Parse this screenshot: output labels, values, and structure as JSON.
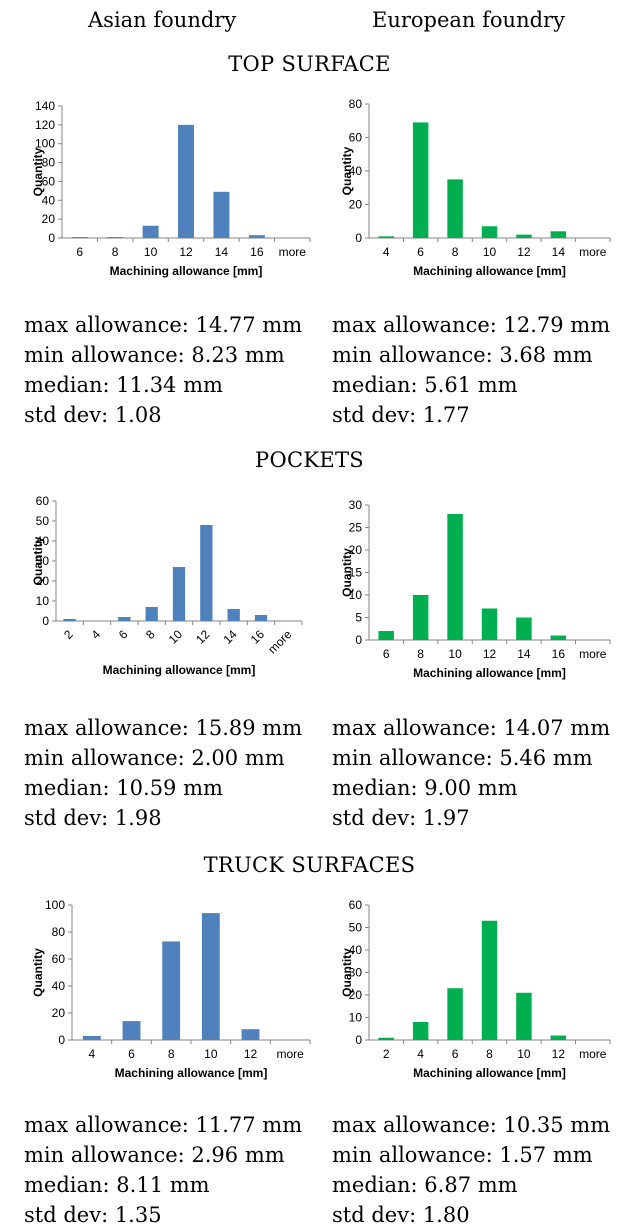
{
  "headers": {
    "left": "Asian foundry",
    "right": "European foundry"
  },
  "colors": {
    "asian": "#4F81BD",
    "european": "#00B050"
  },
  "sections": [
    {
      "title": "TOP SURFACE",
      "charts": [
        {
          "type": "bar",
          "color": "#4F81BD",
          "categories": [
            "6",
            "8",
            "10",
            "12",
            "14",
            "16",
            "more"
          ],
          "values": [
            1,
            1,
            13,
            120,
            49,
            3,
            0
          ],
          "ylim": [
            0,
            140
          ],
          "yticks": [
            0,
            20,
            40,
            60,
            80,
            100,
            120,
            140
          ],
          "xlabel": "Machining allowance [mm]",
          "ylabel": "Quantity",
          "rotate_ticks": false,
          "stats": {
            "max": "max allowance: 14.77 mm",
            "min": "min allowance: 8.23 mm",
            "median": "median: 11.34 mm",
            "std": "std dev: 1.08"
          }
        },
        {
          "type": "bar",
          "color": "#00B050",
          "categories": [
            "4",
            "6",
            "8",
            "10",
            "12",
            "14",
            "more"
          ],
          "values": [
            1,
            69,
            35,
            7,
            2,
            4,
            0
          ],
          "ylim": [
            0,
            80
          ],
          "yticks": [
            0,
            20,
            40,
            60,
            80
          ],
          "xlabel": "Machining allowance [mm]",
          "ylabel": "Quantity",
          "rotate_ticks": false,
          "stats": {
            "max": "max allowance: 12.79 mm",
            "min": "min allowance: 3.68 mm",
            "median": "median: 5.61 mm",
            "std": "std dev: 1.77"
          }
        }
      ]
    },
    {
      "title": "POCKETS",
      "charts": [
        {
          "type": "bar",
          "color": "#4F81BD",
          "categories": [
            "2",
            "4",
            "6",
            "8",
            "10",
            "12",
            "14",
            "16",
            "more"
          ],
          "values": [
            1,
            0,
            2,
            7,
            27,
            48,
            6,
            3,
            0
          ],
          "ylim": [
            0,
            60
          ],
          "yticks": [
            0,
            10,
            20,
            30,
            40,
            50,
            60
          ],
          "xlabel": "Machining allowance [mm]",
          "ylabel": "Quantity",
          "rotate_ticks": true,
          "stats": {
            "max": "max allowance: 15.89 mm",
            "min": "min allowance: 2.00 mm",
            "median": "median: 10.59 mm",
            "std": "std dev: 1.98"
          }
        },
        {
          "type": "bar",
          "color": "#00B050",
          "categories": [
            "6",
            "8",
            "10",
            "12",
            "14",
            "16",
            "more"
          ],
          "values": [
            2,
            10,
            28,
            7,
            5,
            1,
            0
          ],
          "ylim": [
            0,
            30
          ],
          "yticks": [
            0,
            5,
            10,
            15,
            20,
            25,
            30
          ],
          "xlabel": "Machining allowance [mm]",
          "ylabel": "Quantity",
          "rotate_ticks": false,
          "stats": {
            "max": "max allowance: 14.07 mm",
            "min": "min allowance: 5.46 mm",
            "median": "median: 9.00 mm",
            "std": "std dev: 1.97"
          }
        }
      ]
    },
    {
      "title": "TRUCK SURFACES",
      "charts": [
        {
          "type": "bar",
          "color": "#4F81BD",
          "categories": [
            "4",
            "6",
            "8",
            "10",
            "12",
            "more"
          ],
          "values": [
            3,
            14,
            73,
            94,
            8,
            0
          ],
          "ylim": [
            0,
            100
          ],
          "yticks": [
            0,
            20,
            40,
            60,
            80,
            100
          ],
          "xlabel": "Machining allowance [mm]",
          "ylabel": "Quantity",
          "rotate_ticks": false,
          "stats": {
            "max": "max allowance: 11.77 mm",
            "min": "min allowance: 2.96 mm",
            "median": "median: 8.11 mm",
            "std": "std dev: 1.35"
          }
        },
        {
          "type": "bar",
          "color": "#00B050",
          "categories": [
            "2",
            "4",
            "6",
            "8",
            "10",
            "12",
            "more"
          ],
          "values": [
            1,
            8,
            23,
            53,
            21,
            2,
            0
          ],
          "ylim": [
            0,
            60
          ],
          "yticks": [
            0,
            10,
            20,
            30,
            40,
            50,
            60
          ],
          "xlabel": "Machining allowance [mm]",
          "ylabel": "Quantity",
          "rotate_ticks": false,
          "stats": {
            "max": "max allowance: 10.35 mm",
            "min": "min allowance: 1.57 mm",
            "median": "median: 6.87 mm",
            "std": "std dev: 1.80"
          }
        }
      ]
    }
  ],
  "chart_data": [
    {
      "type": "bar",
      "categories": [
        "6",
        "8",
        "10",
        "12",
        "14",
        "16",
        "more"
      ],
      "values": [
        1,
        1,
        13,
        120,
        49,
        3,
        0
      ],
      "xlabel": "Machining allowance [mm]",
      "ylabel": "Quantity",
      "ylim": [
        0,
        140
      ]
    },
    {
      "type": "bar",
      "categories": [
        "4",
        "6",
        "8",
        "10",
        "12",
        "14",
        "more"
      ],
      "values": [
        1,
        69,
        35,
        7,
        2,
        4,
        0
      ],
      "xlabel": "Machining allowance [mm]",
      "ylabel": "Quantity",
      "ylim": [
        0,
        80
      ]
    },
    {
      "type": "bar",
      "categories": [
        "2",
        "4",
        "6",
        "8",
        "10",
        "12",
        "14",
        "16",
        "more"
      ],
      "values": [
        1,
        0,
        2,
        7,
        27,
        48,
        6,
        3,
        0
      ],
      "xlabel": "Machining allowance [mm]",
      "ylabel": "Quantity",
      "ylim": [
        0,
        60
      ]
    },
    {
      "type": "bar",
      "categories": [
        "6",
        "8",
        "10",
        "12",
        "14",
        "16",
        "more"
      ],
      "values": [
        2,
        10,
        28,
        7,
        5,
        1,
        0
      ],
      "xlabel": "Machining allowance [mm]",
      "ylabel": "Quantity",
      "ylim": [
        0,
        30
      ]
    },
    {
      "type": "bar",
      "categories": [
        "4",
        "6",
        "8",
        "10",
        "12",
        "more"
      ],
      "values": [
        3,
        14,
        73,
        94,
        8,
        0
      ],
      "xlabel": "Machining allowance [mm]",
      "ylabel": "Quantity",
      "ylim": [
        0,
        100
      ]
    },
    {
      "type": "bar",
      "categories": [
        "2",
        "4",
        "6",
        "8",
        "10",
        "12",
        "more"
      ],
      "values": [
        1,
        8,
        23,
        53,
        21,
        2,
        0
      ],
      "xlabel": "Machining allowance [mm]",
      "ylabel": "Quantity",
      "ylim": [
        0,
        60
      ]
    }
  ]
}
